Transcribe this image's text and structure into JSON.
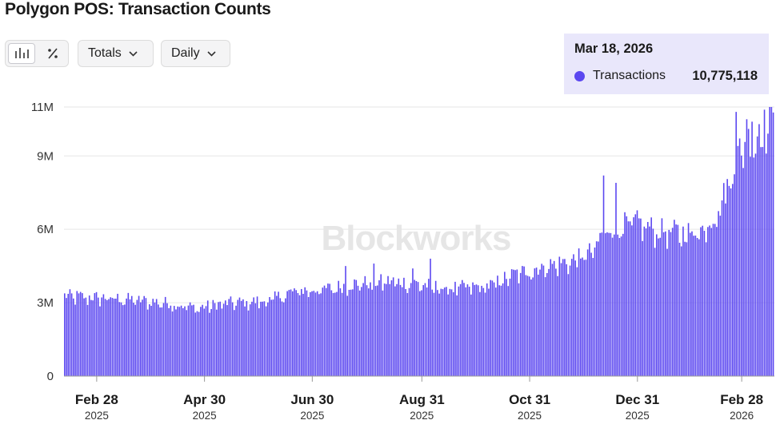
{
  "page": {
    "title": "Polygon POS: Transaction Counts"
  },
  "controls": {
    "view_toggle": [
      {
        "name": "bar-chart-icon",
        "active": true
      },
      {
        "name": "percent-icon",
        "active": false
      }
    ],
    "totals_label": "Totals",
    "interval_label": "Daily"
  },
  "tooltip": {
    "date": "Mar 18, 2026",
    "series_label": "Transactions",
    "value": "10,775,118",
    "color": "#5b47f0"
  },
  "watermark": "Blockworks",
  "colors": {
    "bar": "#5b47f0",
    "grid": "#e6e6e6",
    "axis": "#999999"
  },
  "chart_data": {
    "type": "bar",
    "title": "Polygon POS: Transaction Counts",
    "series": [
      {
        "name": "Transactions",
        "start_date": "2025-02-10",
        "end_date": "2026-03-18",
        "interval": "daily"
      }
    ],
    "y_ticks": [
      {
        "value": 0,
        "label": "0"
      },
      {
        "value": 3000000,
        "label": "3M"
      },
      {
        "value": 6000000,
        "label": "6M"
      },
      {
        "value": 9000000,
        "label": "9M"
      },
      {
        "value": 11000000,
        "label": "11M"
      }
    ],
    "ylim": [
      0,
      11000000
    ],
    "x_ticks": [
      {
        "month": "Feb 28",
        "year": "2025",
        "day": 18
      },
      {
        "month": "Apr 30",
        "year": "2025",
        "day": 79
      },
      {
        "month": "Jun 30",
        "year": "2025",
        "day": 140
      },
      {
        "month": "Aug 31",
        "year": "2025",
        "day": 202
      },
      {
        "month": "Oct 31",
        "year": "2025",
        "day": 263
      },
      {
        "month": "Dec 31",
        "year": "2025",
        "day": 324
      },
      {
        "month": "Feb 28",
        "year": "2026",
        "day": 383
      }
    ],
    "trend_knots": [
      [
        0,
        3.3
      ],
      [
        30,
        3.2
      ],
      [
        60,
        3.0
      ],
      [
        75,
        2.8
      ],
      [
        90,
        3.0
      ],
      [
        115,
        3.1
      ],
      [
        130,
        3.5
      ],
      [
        150,
        3.6
      ],
      [
        165,
        3.8
      ],
      [
        185,
        3.9
      ],
      [
        200,
        3.8
      ],
      [
        215,
        3.6
      ],
      [
        240,
        3.7
      ],
      [
        255,
        4.2
      ],
      [
        270,
        4.5
      ],
      [
        290,
        4.8
      ],
      [
        300,
        5.2
      ],
      [
        305,
        6.0
      ],
      [
        315,
        6.2
      ],
      [
        325,
        6.3
      ],
      [
        335,
        6.0
      ],
      [
        350,
        5.9
      ],
      [
        360,
        6.0
      ],
      [
        370,
        6.8
      ],
      [
        375,
        7.8
      ],
      [
        380,
        9.0
      ],
      [
        385,
        9.6
      ],
      [
        390,
        9.8
      ],
      [
        395,
        10.1
      ],
      [
        400,
        10.78
      ]
    ],
    "spikes": [
      {
        "day": 305,
        "value": 8.2
      },
      {
        "day": 312,
        "value": 7.9
      },
      {
        "day": 330,
        "value": 6.3
      },
      {
        "day": 380,
        "value": 10.8
      },
      {
        "day": 386,
        "value": 10.5
      },
      {
        "day": 389,
        "value": 10.4
      },
      {
        "day": 393,
        "value": 10.3
      },
      {
        "day": 197,
        "value": 4.4
      },
      {
        "day": 207,
        "value": 4.8
      },
      {
        "day": 159,
        "value": 4.5
      },
      {
        "day": 175,
        "value": 4.6
      }
    ],
    "last_value": 10775118,
    "unit": "millions"
  }
}
